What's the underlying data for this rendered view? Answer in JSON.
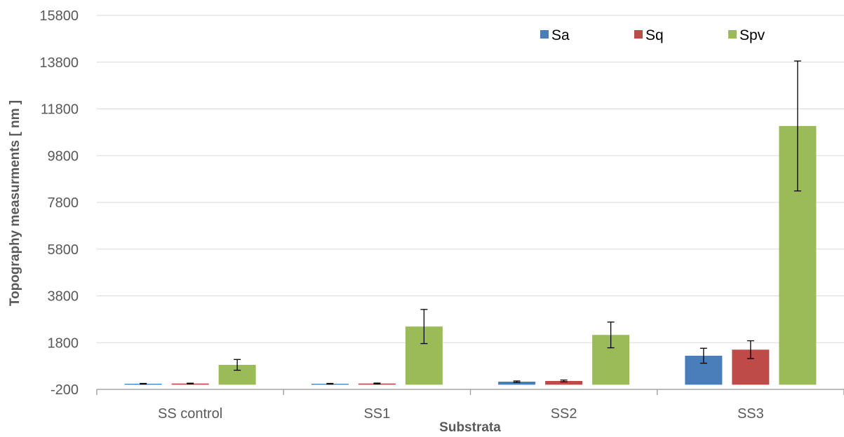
{
  "chart_data": {
    "type": "bar",
    "title": "",
    "xlabel": "Substrata",
    "ylabel": "Topography measurments [ nm ]",
    "categories": [
      "SS control",
      "SS1",
      "SS2",
      "SS3"
    ],
    "yticks": [
      "-200",
      "1800",
      "3800",
      "5800",
      "7800",
      "9800",
      "11800",
      "13800",
      "15800"
    ],
    "ylim": [
      -200,
      15800
    ],
    "grid": true,
    "legend_position": "top-right",
    "series": [
      {
        "name": "Sa",
        "color": "#4a7ebb",
        "values": [
          40,
          40,
          130,
          1240
        ],
        "errors": [
          15,
          15,
          30,
          320
        ]
      },
      {
        "name": "Sq",
        "color": "#be4b48",
        "values": [
          50,
          50,
          160,
          1500
        ],
        "errors": [
          15,
          20,
          40,
          380
        ]
      },
      {
        "name": "Spv",
        "color": "#9bbb59",
        "values": [
          850,
          2490,
          2130,
          11070
        ],
        "errors": [
          230,
          730,
          550,
          2780
        ]
      }
    ]
  }
}
